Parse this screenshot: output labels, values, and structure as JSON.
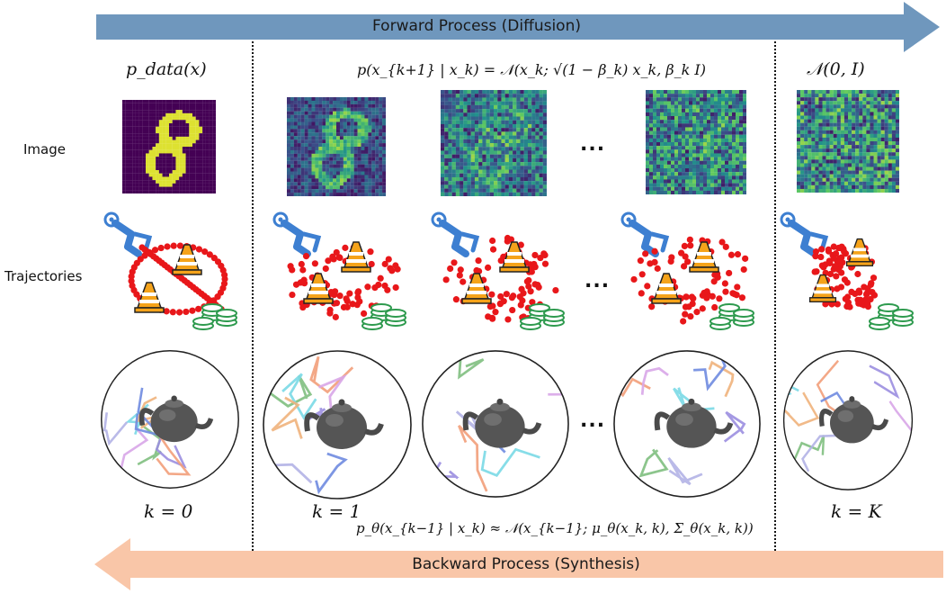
{
  "forward_arrow": {
    "label": "Forward Process (Diffusion)",
    "color": "#6f97bd"
  },
  "backward_arrow": {
    "label": "Backward Process (Synthesis)",
    "color": "#f9c6a8"
  },
  "row_labels": {
    "image": "Image",
    "trajectories": "Trajectories"
  },
  "equations": {
    "data_dist": "p_data(x)",
    "forward_kernel": "p(x_{k+1} | x_k) = 𝒩(x_k; √(1 − β_k) x_k, β_k I)",
    "prior": "𝒩(0, I)",
    "reverse_kernel": "p_θ(x_{k−1} | x_k) ≈ 𝒩(x_{k−1}; μ_θ(x_k, k), Σ_θ(x_k, k))"
  },
  "step_labels": {
    "k0": "k = 0",
    "k1": "k = 1",
    "kK": "k = K"
  },
  "ellipsis": "...",
  "colors": {
    "viridis_dark": "#3b0f70",
    "viridis_teal": "#21918c",
    "viridis_yellow": "#fde725",
    "trajectory_dot": "#e8171a",
    "cone_orange": "#f5a31a",
    "robot_blue": "#3d7fd1",
    "coins_green": "#2e9a4e"
  },
  "icons": [
    "robot-arm-icon",
    "traffic-cone-icon",
    "coin-stack-icon",
    "teapot-icon"
  ]
}
